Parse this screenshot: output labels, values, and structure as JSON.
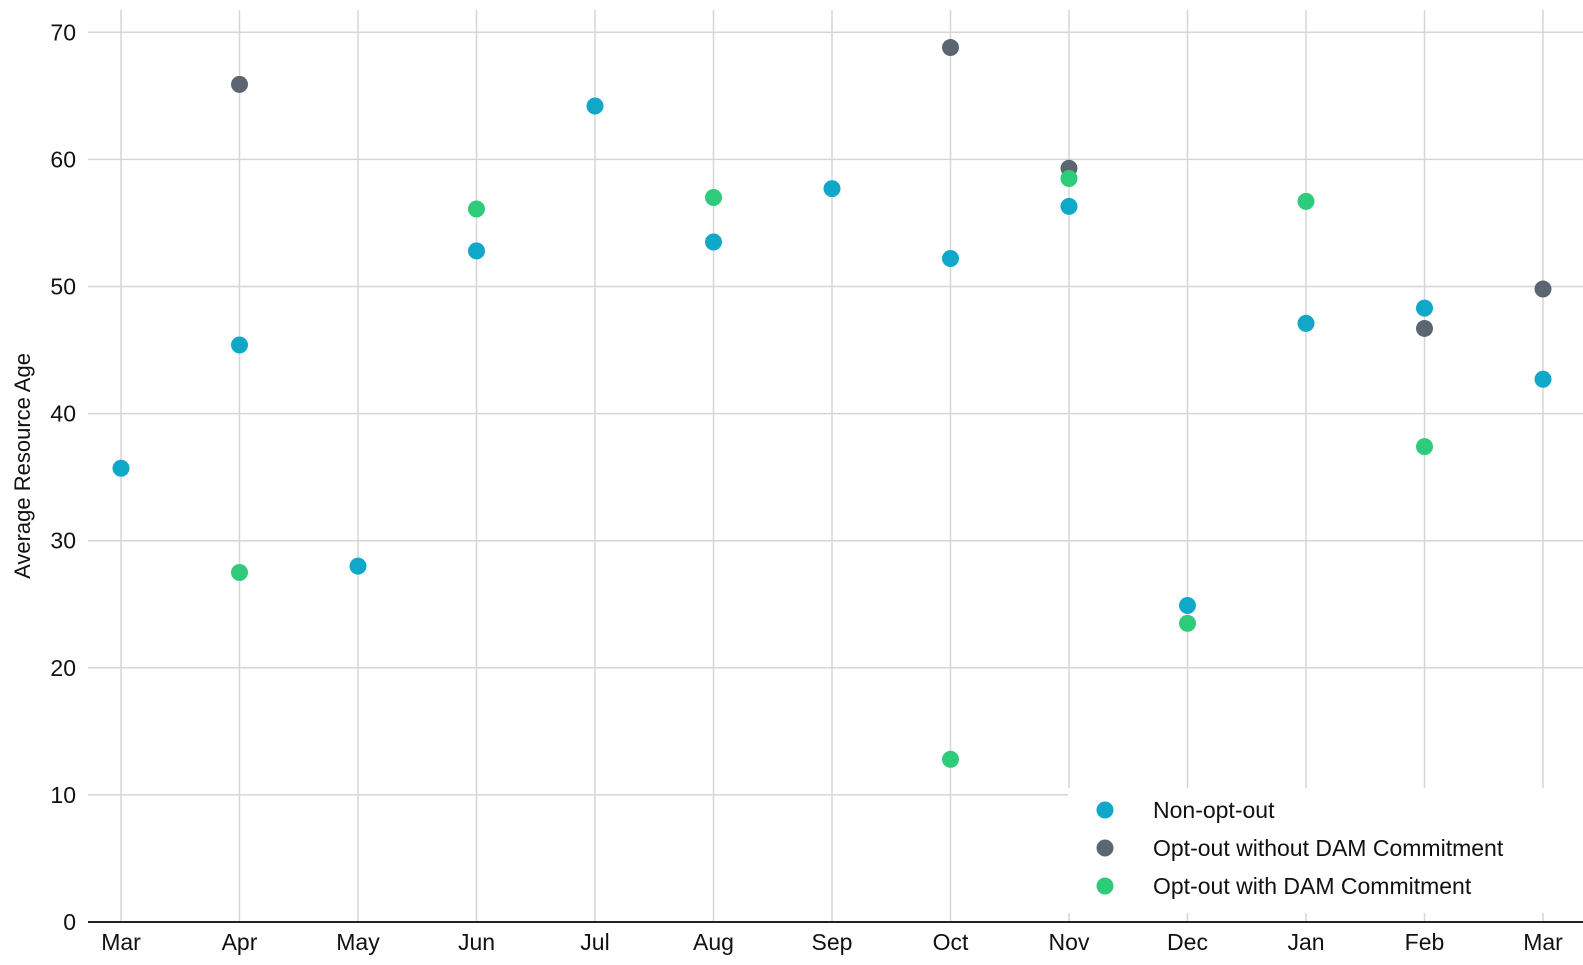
{
  "chart_data": {
    "type": "scatter",
    "title": "",
    "xlabel": "",
    "ylabel": "Average Resource Age",
    "categories": [
      "Mar",
      "Apr",
      "May",
      "Jun",
      "Jul",
      "Aug",
      "Sep",
      "Oct",
      "Nov",
      "Dec",
      "Jan",
      "Feb",
      "Mar"
    ],
    "ylim": [
      0,
      70
    ],
    "yticks": [
      0,
      10,
      20,
      30,
      40,
      50,
      60,
      70
    ],
    "grid": true,
    "legend_position": "bottom-right",
    "series": [
      {
        "name": "Non-opt-out",
        "color": "#0fa8c8",
        "values": [
          35.7,
          45.4,
          28.0,
          52.8,
          64.2,
          53.5,
          57.7,
          52.2,
          56.3,
          24.9,
          47.1,
          48.3,
          42.7
        ]
      },
      {
        "name": "Opt-out without DAM Commitment",
        "color": "#5b6670",
        "values": [
          null,
          65.9,
          null,
          null,
          null,
          null,
          null,
          68.8,
          59.3,
          null,
          null,
          46.7,
          49.8
        ]
      },
      {
        "name": "Opt-out with DAM Commitment",
        "color": "#2ecc7a",
        "values": [
          null,
          27.5,
          null,
          56.1,
          null,
          57.0,
          null,
          12.8,
          58.5,
          23.5,
          56.7,
          37.4,
          null
        ]
      }
    ]
  }
}
